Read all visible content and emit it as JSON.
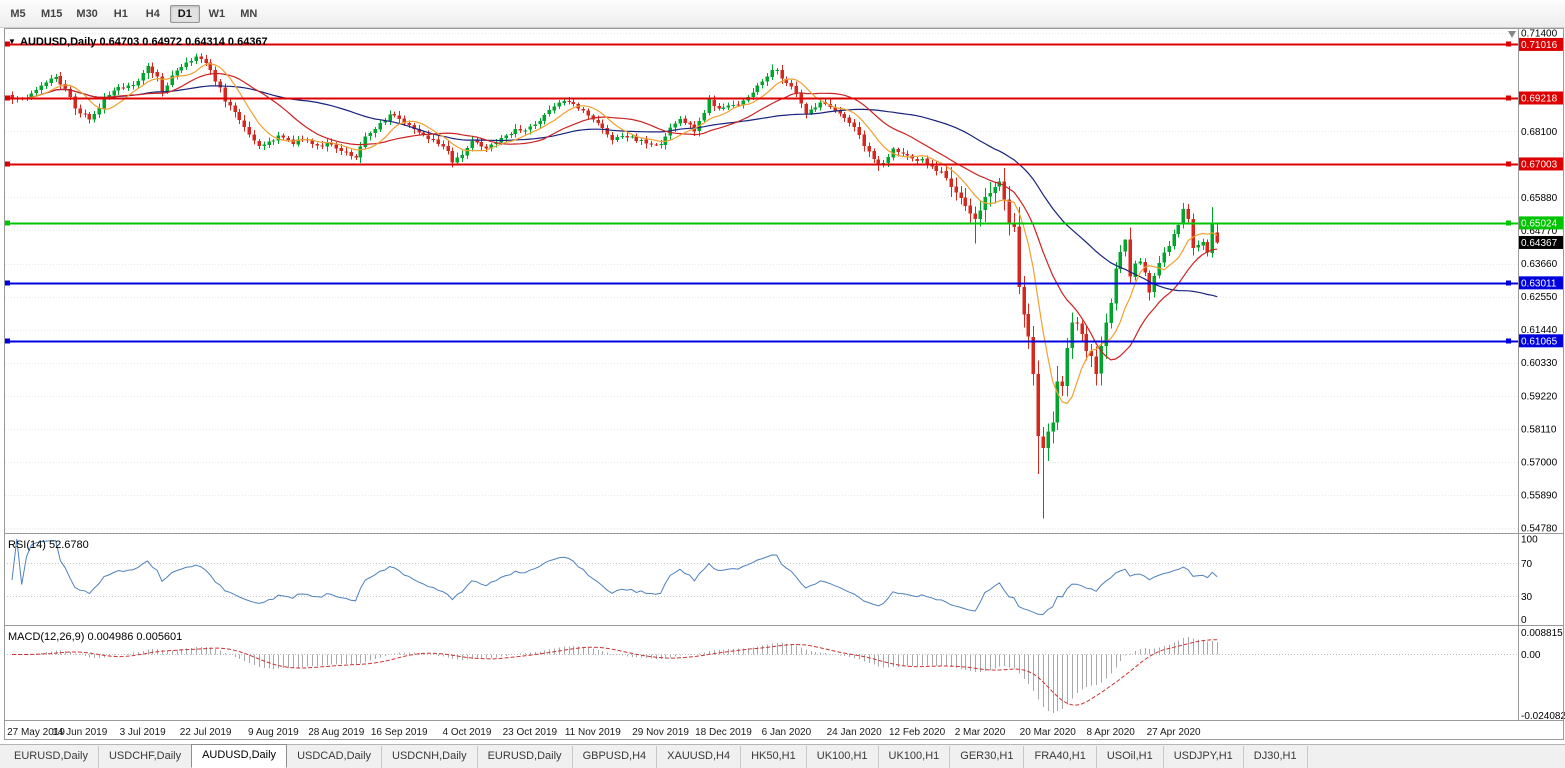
{
  "toolbar": {
    "timeframes": [
      "M5",
      "M15",
      "M30",
      "H1",
      "H4",
      "D1",
      "W1",
      "MN"
    ],
    "active": "D1"
  },
  "chart": {
    "title_dropdown": "▼",
    "title": "AUDUSD,Daily 0.64703 0.64972 0.64314 0.64367"
  },
  "chart_data": {
    "type": "candlestick",
    "symbol": "AUDUSD",
    "timeframe": "Daily",
    "ohlc_display": {
      "open": "0.64703",
      "high": "0.64972",
      "low": "0.64314",
      "close": "0.64367"
    },
    "price_axis": {
      "max": 0.714,
      "min": 0.5478,
      "ticks": [
        "0.71400",
        "0.68100",
        "0.65880",
        "0.64770",
        "0.63660",
        "0.62550",
        "0.61440",
        "0.60330",
        "0.59220",
        "0.58110",
        "0.57000",
        "0.55890",
        "0.54780"
      ]
    },
    "horizontal_lines": [
      {
        "price": 0.71016,
        "label": "0.71016",
        "color": "#dd0000",
        "kind": "resistance"
      },
      {
        "price": 0.69218,
        "label": "0.69218",
        "color": "#dd0000",
        "kind": "resistance"
      },
      {
        "price": 0.67003,
        "label": "0.67003",
        "color": "#dd0000",
        "kind": "resistance"
      },
      {
        "price": 0.65024,
        "label": "0.65024",
        "color": "#00c400",
        "kind": "support"
      },
      {
        "price": 0.63011,
        "label": "0.63011",
        "color": "#0000dd",
        "kind": "support"
      },
      {
        "price": 0.61065,
        "label": "0.61065",
        "color": "#0000dd",
        "kind": "support"
      }
    ],
    "current_price_label": {
      "price": 0.64367,
      "text": "0.64367",
      "bg": "#000000",
      "fg": "#ffffff"
    },
    "colors": {
      "bull": "#00a62c",
      "bear": "#d6281e",
      "grid": "#e8e8e8",
      "ma_fast": "#f0a030",
      "ma_mid": "#cc2222",
      "ma_slow": "#1a237e",
      "rsi": "#4f81bd",
      "macd_hist": "#a8a8a8",
      "macd_signal": "#cc3333"
    },
    "moving_averages": [
      {
        "period": 8,
        "color_key": "ma_fast"
      },
      {
        "period": 20,
        "color_key": "ma_mid"
      },
      {
        "period": 45,
        "color_key": "ma_slow"
      }
    ],
    "num_candles": 250,
    "close_waypoints": [
      [
        0,
        0.6925
      ],
      [
        2,
        0.6918
      ],
      [
        4,
        0.6938
      ],
      [
        7,
        0.6978
      ],
      [
        9,
        0.6992
      ],
      [
        11,
        0.6952
      ],
      [
        13,
        0.689
      ],
      [
        14,
        0.6872
      ],
      [
        16,
        0.6852
      ],
      [
        18,
        0.6892
      ],
      [
        19,
        0.6925
      ],
      [
        22,
        0.6958
      ],
      [
        25,
        0.6966
      ],
      [
        27,
        0.7
      ],
      [
        28,
        0.703
      ],
      [
        30,
        0.699
      ],
      [
        31,
        0.6942
      ],
      [
        33,
        0.6995
      ],
      [
        34,
        0.7018
      ],
      [
        36,
        0.7042
      ],
      [
        38,
        0.706
      ],
      [
        40,
        0.7038
      ],
      [
        41,
        0.7012
      ],
      [
        43,
        0.6952
      ],
      [
        44,
        0.6908
      ],
      [
        46,
        0.688
      ],
      [
        47,
        0.6848
      ],
      [
        49,
        0.68
      ],
      [
        51,
        0.6757
      ],
      [
        53,
        0.6772
      ],
      [
        55,
        0.6795
      ],
      [
        57,
        0.6782
      ],
      [
        58,
        0.6768
      ],
      [
        60,
        0.6788
      ],
      [
        62,
        0.6772
      ],
      [
        63,
        0.6758
      ],
      [
        65,
        0.6772
      ],
      [
        67,
        0.6752
      ],
      [
        69,
        0.6735
      ],
      [
        71,
        0.672
      ],
      [
        72,
        0.6758
      ],
      [
        73,
        0.6788
      ],
      [
        75,
        0.6822
      ],
      [
        77,
        0.6848
      ],
      [
        78,
        0.6868
      ],
      [
        80,
        0.6852
      ],
      [
        81,
        0.684
      ],
      [
        83,
        0.682
      ],
      [
        84,
        0.6808
      ],
      [
        86,
        0.6788
      ],
      [
        88,
        0.6772
      ],
      [
        90,
        0.6742
      ],
      [
        91,
        0.6702
      ],
      [
        93,
        0.6732
      ],
      [
        95,
        0.6772
      ],
      [
        97,
        0.6762
      ],
      [
        98,
        0.6755
      ],
      [
        100,
        0.677
      ],
      [
        101,
        0.6782
      ],
      [
        103,
        0.6805
      ],
      [
        104,
        0.6822
      ],
      [
        106,
        0.6812
      ],
      [
        108,
        0.6835
      ],
      [
        110,
        0.6862
      ],
      [
        111,
        0.6885
      ],
      [
        113,
        0.6905
      ],
      [
        114,
        0.6915
      ],
      [
        116,
        0.6902
      ],
      [
        117,
        0.689
      ],
      [
        119,
        0.6862
      ],
      [
        121,
        0.684
      ],
      [
        123,
        0.6802
      ],
      [
        124,
        0.6785
      ],
      [
        126,
        0.6795
      ],
      [
        127,
        0.6792
      ],
      [
        129,
        0.6782
      ],
      [
        131,
        0.6772
      ],
      [
        134,
        0.6765
      ],
      [
        136,
        0.6822
      ],
      [
        138,
        0.6852
      ],
      [
        140,
        0.6828
      ],
      [
        141,
        0.6808
      ],
      [
        143,
        0.6872
      ],
      [
        144,
        0.6912
      ],
      [
        146,
        0.6885
      ],
      [
        148,
        0.6895
      ],
      [
        150,
        0.6902
      ],
      [
        152,
        0.6925
      ],
      [
        153,
        0.6945
      ],
      [
        155,
        0.6982
      ],
      [
        157,
        0.7012
      ],
      [
        158,
        0.7021
      ],
      [
        159,
        0.6985
      ],
      [
        161,
        0.6958
      ],
      [
        162,
        0.6932
      ],
      [
        164,
        0.6873
      ],
      [
        166,
        0.6892
      ],
      [
        167,
        0.6902
      ],
      [
        169,
        0.6892
      ],
      [
        170,
        0.6885
      ],
      [
        172,
        0.6858
      ],
      [
        174,
        0.6828
      ],
      [
        176,
        0.6762
      ],
      [
        178,
        0.6712
      ],
      [
        179,
        0.6692
      ],
      [
        181,
        0.6722
      ],
      [
        182,
        0.6748
      ],
      [
        184,
        0.6732
      ],
      [
        186,
        0.6718
      ],
      [
        188,
        0.6712
      ],
      [
        190,
        0.6692
      ],
      [
        192,
        0.6672
      ],
      [
        194,
        0.6625
      ],
      [
        196,
        0.6582
      ],
      [
        198,
        0.6532
      ],
      [
        199,
        0.6515
      ],
      [
        200,
        0.6545
      ],
      [
        201,
        0.6592
      ],
      [
        203,
        0.6622
      ],
      [
        204,
        0.6642
      ],
      [
        205,
        0.6582
      ],
      [
        206,
        0.6502
      ],
      [
        207,
        0.6492
      ],
      [
        208,
        0.6292
      ],
      [
        209,
        0.6192
      ],
      [
        210,
        0.6122
      ],
      [
        211,
        0.5992
      ],
      [
        212,
        0.5782
      ],
      [
        213,
        0.5748
      ],
      [
        214,
        0.5802
      ],
      [
        215,
        0.5832
      ],
      [
        216,
        0.5972
      ],
      [
        217,
        0.5958
      ],
      [
        218,
        0.6078
      ],
      [
        219,
        0.6172
      ],
      [
        220,
        0.6168
      ],
      [
        221,
        0.6135
      ],
      [
        222,
        0.6072
      ],
      [
        223,
        0.6058
      ],
      [
        224,
        0.5992
      ],
      [
        225,
        0.6088
      ],
      [
        226,
        0.6168
      ],
      [
        227,
        0.6238
      ],
      [
        228,
        0.6348
      ],
      [
        229,
        0.6402
      ],
      [
        230,
        0.6442
      ],
      [
        231,
        0.6322
      ],
      [
        232,
        0.6362
      ],
      [
        233,
        0.6368
      ],
      [
        234,
        0.6335
      ],
      [
        235,
        0.6272
      ],
      [
        236,
        0.6322
      ],
      [
        237,
        0.6372
      ],
      [
        238,
        0.6398
      ],
      [
        239,
        0.6428
      ],
      [
        240,
        0.6468
      ],
      [
        241,
        0.6492
      ],
      [
        242,
        0.6552
      ],
      [
        243,
        0.6512
      ],
      [
        244,
        0.6418
      ],
      [
        245,
        0.6428
      ],
      [
        246,
        0.6438
      ],
      [
        247,
        0.6402
      ],
      [
        248,
        0.6498
      ],
      [
        249,
        0.64367
      ]
    ],
    "special_candles": {
      "199": {
        "low": 0.6434
      },
      "205": {
        "high": 0.6686
      },
      "212": {
        "low": 0.566
      },
      "213": {
        "low": 0.551
      },
      "230": {
        "high": 0.6445
      },
      "242": {
        "high": 0.657
      },
      "248": {
        "high": 0.6556
      },
      "249": {
        "open": 0.64703,
        "high": 0.64972,
        "low": 0.64314,
        "close": 0.64367
      }
    },
    "date_ticks": [
      {
        "i": 0,
        "label": "27 May 2019"
      },
      {
        "i": 14,
        "label": "14 Jun 2019"
      },
      {
        "i": 27,
        "label": "3 Jul 2019"
      },
      {
        "i": 40,
        "label": "22 Jul 2019"
      },
      {
        "i": 54,
        "label": "9 Aug 2019"
      },
      {
        "i": 67,
        "label": "28 Aug 2019"
      },
      {
        "i": 80,
        "label": "16 Sep 2019"
      },
      {
        "i": 94,
        "label": "4 Oct 2019"
      },
      {
        "i": 107,
        "label": "23 Oct 2019"
      },
      {
        "i": 120,
        "label": "11 Nov 2019"
      },
      {
        "i": 134,
        "label": "29 Nov 2019"
      },
      {
        "i": 147,
        "label": "18 Dec 2019"
      },
      {
        "i": 160,
        "label": "6 Jan 2020"
      },
      {
        "i": 174,
        "label": "24 Jan 2020"
      },
      {
        "i": 187,
        "label": "12 Feb 2020"
      },
      {
        "i": 200,
        "label": "2 Mar 2020"
      },
      {
        "i": 214,
        "label": "20 Mar 2020"
      },
      {
        "i": 227,
        "label": "8 Apr 2020"
      },
      {
        "i": 240,
        "label": "27 Apr 2020"
      }
    ],
    "rsi": {
      "name": "RSI(14)",
      "value": "52.6780",
      "period": 14,
      "levels": [
        100,
        70,
        30,
        0
      ],
      "axis_labels": [
        "100",
        "70",
        "30",
        "0"
      ]
    },
    "macd": {
      "name": "MACD(12,26,9)",
      "values": "0.004986 0.005601",
      "fast": 12,
      "slow": 26,
      "signal": 9,
      "axis_max": 0.008815,
      "axis_min": -0.024082,
      "axis_labels": [
        "0.008815",
        "0.00",
        "-0.024082"
      ]
    }
  },
  "tabbar": {
    "tabs": [
      "EURUSD,Daily",
      "USDCHF,Daily",
      "AUDUSD,Daily",
      "USDCAD,Daily",
      "USDCNH,Daily",
      "EURUSD,Daily",
      "GBPUSD,H4",
      "XAUUSD,H4",
      "HK50,H1",
      "UK100,H1",
      "UK100,H1",
      "GER30,H1",
      "FRA40,H1",
      "USOil,H1",
      "USDJPY,H1",
      "DJ30,H1"
    ],
    "active_index": 2
  }
}
